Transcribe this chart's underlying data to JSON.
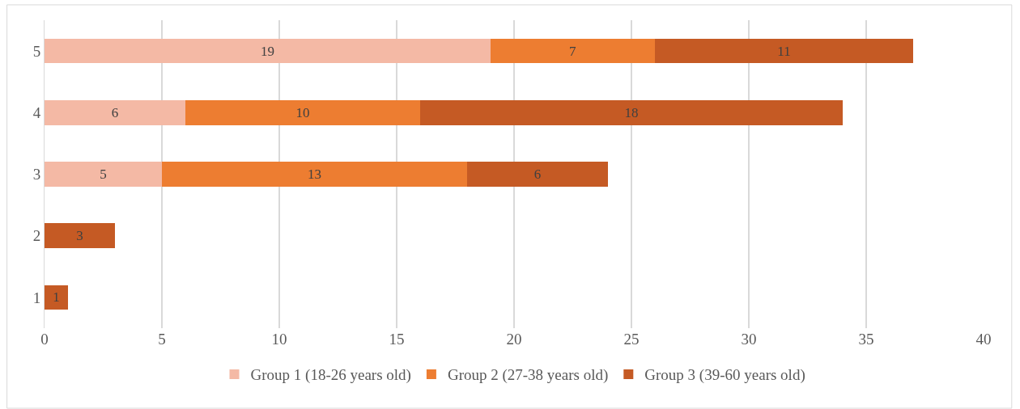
{
  "chart_data": {
    "type": "bar",
    "orientation": "horizontal",
    "stacked": true,
    "categories": [
      "5",
      "4",
      "3",
      "2",
      "1"
    ],
    "series": [
      {
        "name": "Group 1 (18-26 years old)",
        "color": "#f4b9a5",
        "values": [
          19,
          6,
          5,
          null,
          null
        ]
      },
      {
        "name": "Group 2 (27-38 years old)",
        "color": "#ed7d31",
        "values": [
          7,
          10,
          13,
          null,
          null
        ]
      },
      {
        "name": "Group 3 (39-60 years old)",
        "color": "#c55a24",
        "values": [
          11,
          18,
          6,
          3,
          1
        ]
      }
    ],
    "xlim": [
      0,
      40
    ],
    "xticks": [
      0,
      5,
      10,
      15,
      20,
      25,
      30,
      35,
      40
    ],
    "grid": "x",
    "legend": "bottom",
    "data_labels": true
  }
}
